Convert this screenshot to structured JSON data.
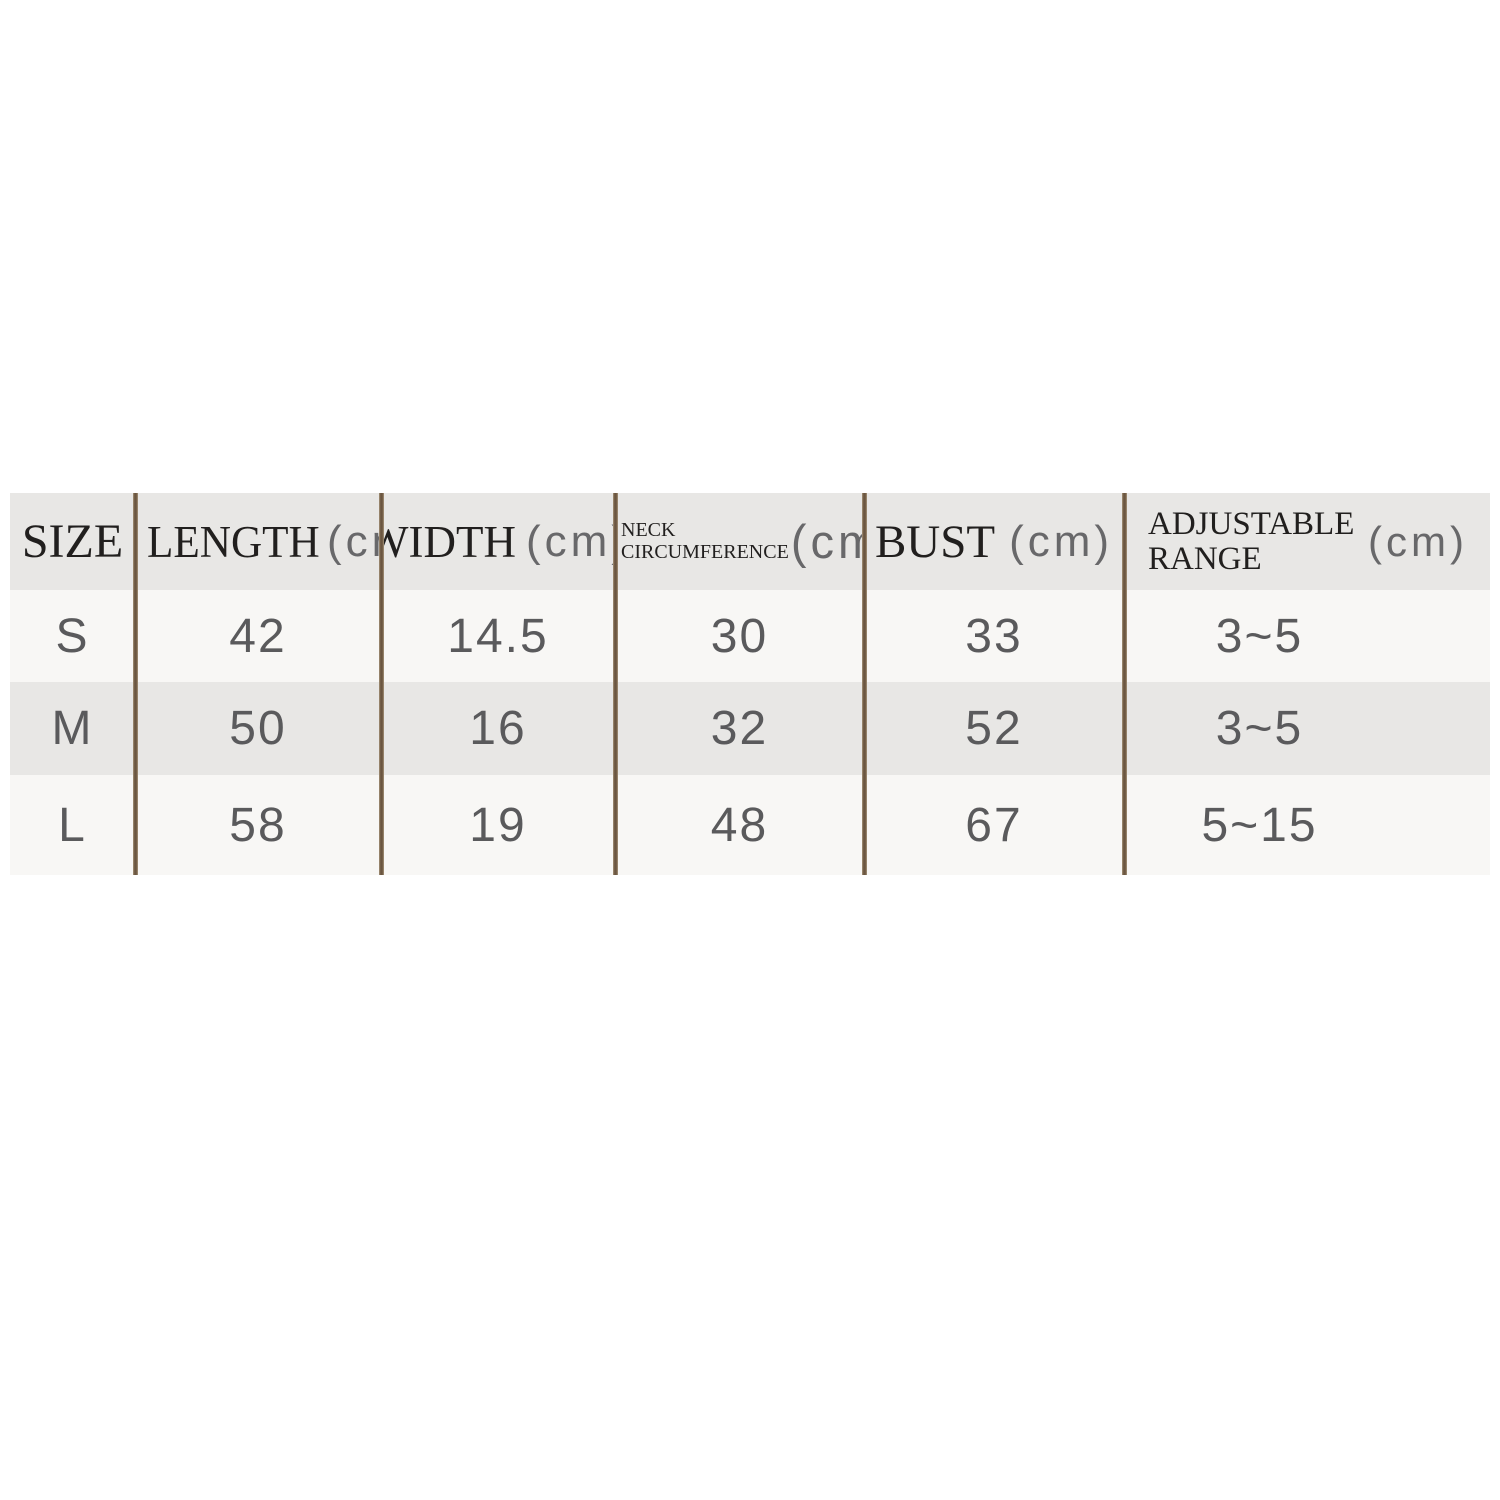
{
  "table": {
    "unit_label": "(cm)",
    "header": {
      "size": "SIZE",
      "length": "LENGTH",
      "width": "WIDTH",
      "neck_line1": "NECK",
      "neck_line2": "CIRCUMFERENCE",
      "bust": "BUST",
      "adjustable_line1": "ADJUSTABLE",
      "adjustable_line2": "RANGE"
    },
    "rows": [
      {
        "size": "S",
        "length": "42",
        "width": "14.5",
        "neck": "30",
        "bust": "33",
        "adjustable": "3~5"
      },
      {
        "size": "M",
        "length": "50",
        "width": "16",
        "neck": "32",
        "bust": "52",
        "adjustable": "3~5"
      },
      {
        "size": "L",
        "length": "58",
        "width": "19",
        "neck": "48",
        "bust": "67",
        "adjustable": "5~15"
      }
    ],
    "colors": {
      "header_bg": "#e8e7e5",
      "alt_row_bg": "#f8f7f5",
      "divider_brown": "#6b5640",
      "header_text": "#211f1e",
      "unit_text": "#68686a",
      "value_text": "#5a5a5c"
    }
  }
}
